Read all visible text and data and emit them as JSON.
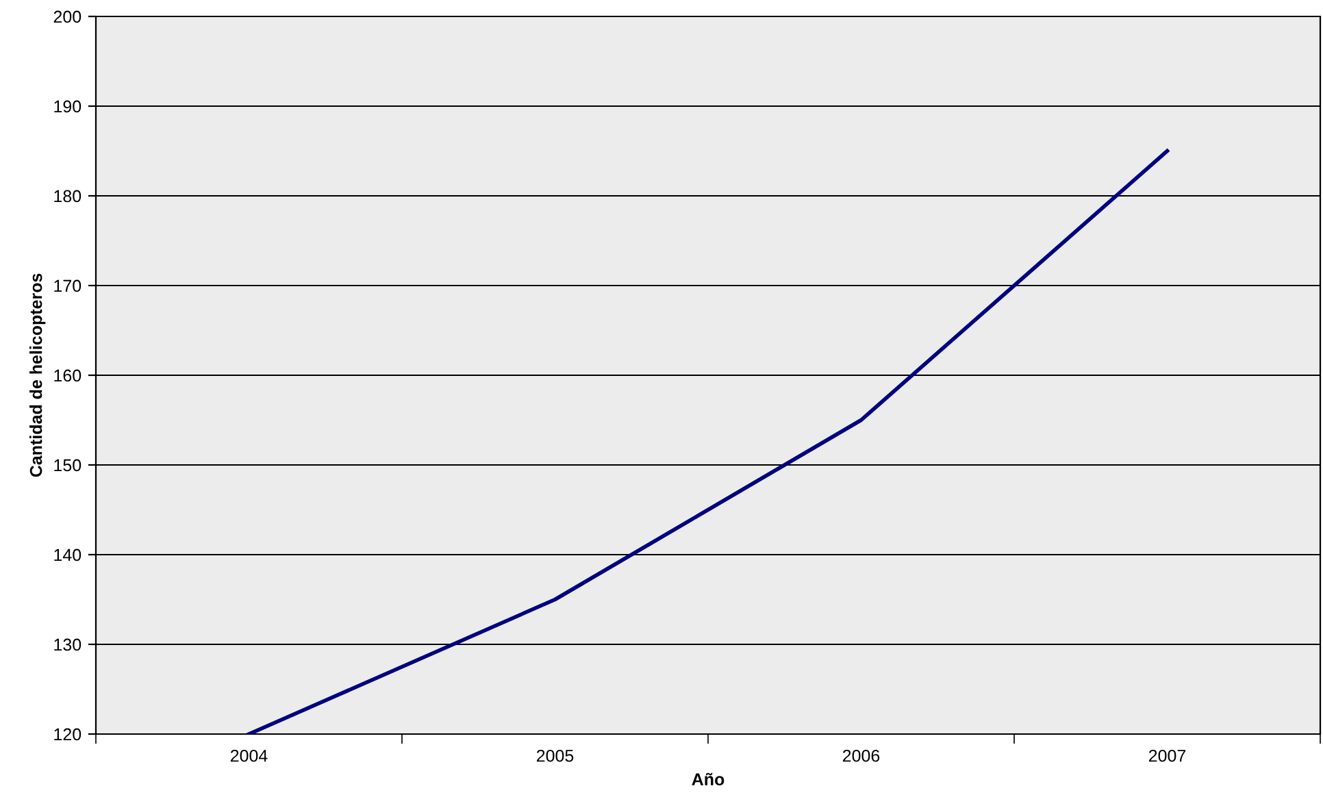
{
  "chart_data": {
    "type": "line",
    "xlabel": "Año",
    "ylabel": "Cantidad de helicopteros",
    "categories": [
      "2004",
      "2005",
      "2006",
      "2007"
    ],
    "series": [
      {
        "color": "#000080",
        "values": [
          120,
          135,
          155,
          185
        ]
      }
    ],
    "ylim": [
      120,
      200
    ],
    "yticks": [
      120,
      130,
      140,
      150,
      160,
      170,
      180,
      190,
      200
    ],
    "grid": "y",
    "marker": "none",
    "line_style": "solid"
  }
}
